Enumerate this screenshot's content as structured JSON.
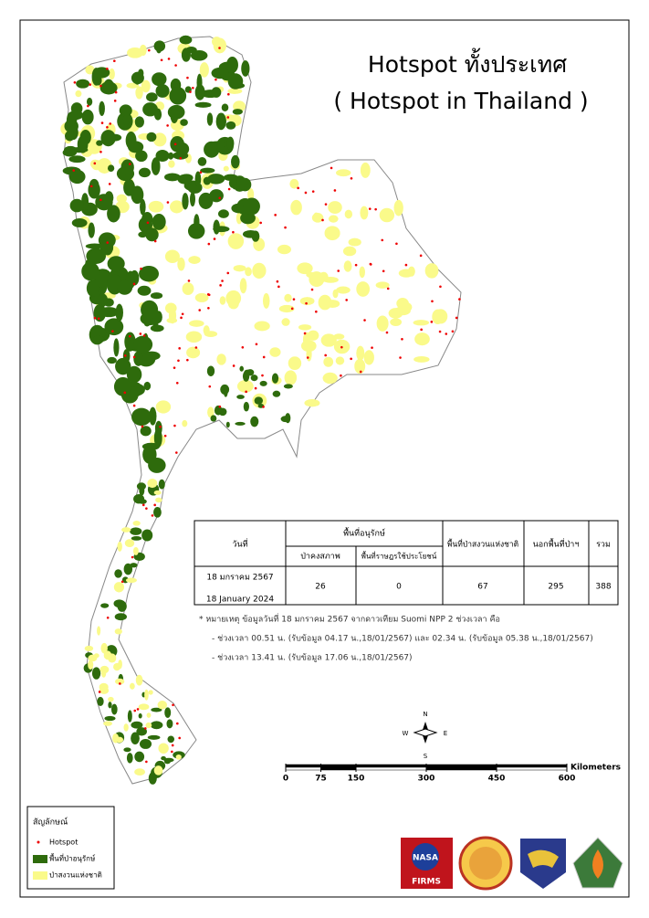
{
  "header": {
    "title": "Hotspot ทั้งประเทศ",
    "subtitle": "( Hotspot in Thailand )"
  },
  "table": {
    "date_header": "วันที่",
    "group_header": "พื้นที่อนุรักษ์",
    "sub_headers": [
      "ป่าคงสภาพ",
      "พื้นที่ราษฎรใช้ประโยชน์"
    ],
    "reserve_header": "พื้นที่ป่าสงวนแห่งชาติ",
    "outside_header": "นอกพื้นที่ป่าฯ",
    "total_header": "รวม",
    "date_th": "18 มกราคม 2567",
    "date_en": "18 January 2024",
    "values": [
      26,
      0,
      67,
      295,
      388
    ]
  },
  "notes": [
    "* หมายเหตุ ข้อมูลวันที่ 18 มกราคม 2567 จากดาวเทียม Suomi NPP 2 ช่วงเวลา คือ",
    "- ช่วงเวลา 00.51 น. (รับข้อมูล 04.17 น.,18/01/2567) และ 02.34 น. (รับข้อมูล 05.38 น.,18/01/2567)",
    "- ช่วงเวลา 13.41 น. (รับข้อมูล 17.06 น.,18/01/2567)"
  ],
  "compass": {
    "n": "N",
    "s": "S",
    "e": "E",
    "w": "W"
  },
  "scale": {
    "unit": "Kilometers",
    "ticks": [
      0,
      75,
      150,
      300,
      450,
      600
    ]
  },
  "legend": {
    "title": "สัญลักษณ์",
    "items": [
      "Hotspot",
      "พื้นที่ป่าอนุรักษ์",
      "ป่าสงวนแห่งชาติ"
    ]
  },
  "logos": {
    "nasa": "NASA",
    "firms": "FIRMS"
  }
}
